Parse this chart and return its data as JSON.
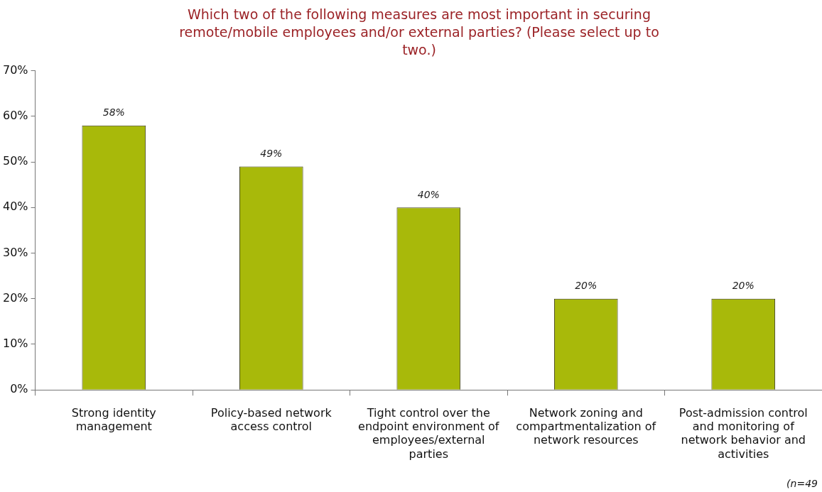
{
  "chart_data": {
    "type": "bar",
    "title": "Which two of the following measures are most important in securing remote/mobile employees and/or external parties? (Please select up to two.)",
    "categories": [
      "Strong identity management",
      "Policy-based network access control",
      "Tight control over the endpoint environment of employees/external parties",
      "Network zoning and compartmentalization of network resources",
      "Post-admission control and monitoring of network behavior and activities"
    ],
    "values": [
      58,
      49,
      40,
      20,
      20
    ],
    "color": "#a8b90a",
    "value_labels": [
      "58%",
      "49%",
      "40%",
      "20%",
      "20%"
    ],
    "ylim": [
      0,
      70
    ],
    "yticks": [
      {
        "value": 0,
        "label": "0%"
      },
      {
        "value": 10,
        "label": "10%"
      },
      {
        "value": 20,
        "label": "20%"
      },
      {
        "value": 30,
        "label": "30%"
      },
      {
        "value": 40,
        "label": "40%"
      },
      {
        "value": 50,
        "label": "50%"
      },
      {
        "value": 60,
        "label": "60%"
      },
      {
        "value": 70,
        "label": "70%"
      }
    ],
    "grid": false,
    "legend": false,
    "annotations": [
      "(n=49"
    ]
  }
}
